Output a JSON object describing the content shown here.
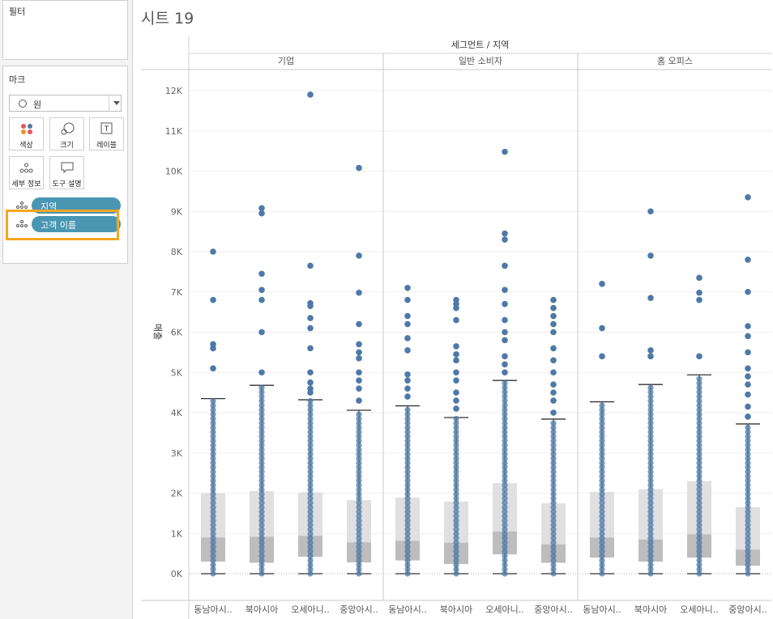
{
  "panel": {
    "filter_title": "필터",
    "marks_title": "마크",
    "mark_type": "원",
    "mark_buttons": {
      "color": "색상",
      "size": "크기",
      "label": "레이블",
      "detail": "세부 정보",
      "tooltip": "도구 설명"
    },
    "pills": [
      "지역",
      "고객 이름"
    ]
  },
  "sheet": {
    "title": "시트 19"
  },
  "colors": {
    "point": "#4e79a7",
    "box_upper": "#e0e0e0",
    "box_lower": "#bdbdbd",
    "pill": "#4996b2",
    "highlight": "#f5a623"
  },
  "chart_data": {
    "type": "boxplot",
    "title": "세그먼트 / 지역",
    "ylabel": "매출",
    "ylim": [
      -300,
      12500
    ],
    "yticks": [
      0,
      1000,
      2000,
      3000,
      4000,
      5000,
      6000,
      7000,
      8000,
      9000,
      10000,
      11000,
      12000
    ],
    "ytick_labels": [
      "0K",
      "1K",
      "2K",
      "3K",
      "4K",
      "5K",
      "6K",
      "7K",
      "8K",
      "9K",
      "10K",
      "11K",
      "12K"
    ],
    "panels": [
      {
        "segment": "기업",
        "categories": [
          "동남아시..",
          "북아시아",
          "오세아니..",
          "중앙아시.."
        ],
        "boxes": [
          {
            "low": 0,
            "q1": 300,
            "median": 900,
            "q3": 2000,
            "high": 4350,
            "outliers": [
              5100,
              5600,
              5700,
              6800,
              8000
            ]
          },
          {
            "low": 0,
            "q1": 270,
            "median": 920,
            "q3": 2050,
            "high": 4680,
            "outliers": [
              5000,
              6000,
              6800,
              7050,
              7450,
              8950,
              9080
            ]
          },
          {
            "low": 0,
            "q1": 420,
            "median": 940,
            "q3": 2020,
            "high": 4320,
            "outliers": [
              4500,
              4600,
              4750,
              5000,
              5600,
              6100,
              6350,
              6650,
              6720,
              7650,
              11900
            ]
          },
          {
            "low": 0,
            "q1": 280,
            "median": 780,
            "q3": 1830,
            "high": 4060,
            "outliers": [
              4300,
              4600,
              4800,
              5000,
              5350,
              5500,
              5700,
              6200,
              6980,
              7900,
              10080
            ]
          }
        ]
      },
      {
        "segment": "일반 소비자",
        "categories": [
          "동남아시..",
          "북아시아",
          "오세아니..",
          "중앙아시.."
        ],
        "boxes": [
          {
            "low": 0,
            "q1": 330,
            "median": 820,
            "q3": 1890,
            "high": 4170,
            "outliers": [
              4400,
              4600,
              4800,
              4950,
              5550,
              5850,
              6200,
              6400,
              6800,
              7100
            ]
          },
          {
            "low": 0,
            "q1": 240,
            "median": 770,
            "q3": 1790,
            "high": 3880,
            "outliers": [
              4100,
              4300,
              4500,
              4800,
              5000,
              5300,
              5450,
              5650,
              6300,
              6600,
              6700,
              6800
            ]
          },
          {
            "low": 0,
            "q1": 480,
            "median": 1050,
            "q3": 2250,
            "high": 4800,
            "outliers": [
              5000,
              5200,
              5400,
              5800,
              6000,
              6300,
              6700,
              7050,
              7650,
              8300,
              8450,
              10480
            ]
          },
          {
            "low": 0,
            "q1": 270,
            "median": 730,
            "q3": 1750,
            "high": 3840,
            "outliers": [
              4000,
              4300,
              4500,
              4700,
              5000,
              5300,
              5600,
              6000,
              6200,
              6400,
              6600,
              6800
            ]
          }
        ]
      },
      {
        "segment": "홈 오피스",
        "categories": [
          "동남아시..",
          "북아시아",
          "오세아니..",
          "중앙아시.."
        ],
        "boxes": [
          {
            "low": 0,
            "q1": 400,
            "median": 900,
            "q3": 2030,
            "high": 4270,
            "outliers": [
              5400,
              6100,
              7200
            ]
          },
          {
            "low": 0,
            "q1": 300,
            "median": 850,
            "q3": 2100,
            "high": 4700,
            "outliers": [
              5400,
              5550,
              6850,
              7900,
              9000
            ]
          },
          {
            "low": 0,
            "q1": 400,
            "median": 980,
            "q3": 2300,
            "high": 4940,
            "outliers": [
              5400,
              6800,
              6980,
              7350
            ]
          },
          {
            "low": 0,
            "q1": 200,
            "median": 600,
            "q3": 1650,
            "high": 3720,
            "outliers": [
              3900,
              4150,
              4450,
              4700,
              4900,
              5100,
              5500,
              5900,
              6150,
              7000,
              7800,
              9350
            ]
          }
        ]
      }
    ]
  }
}
